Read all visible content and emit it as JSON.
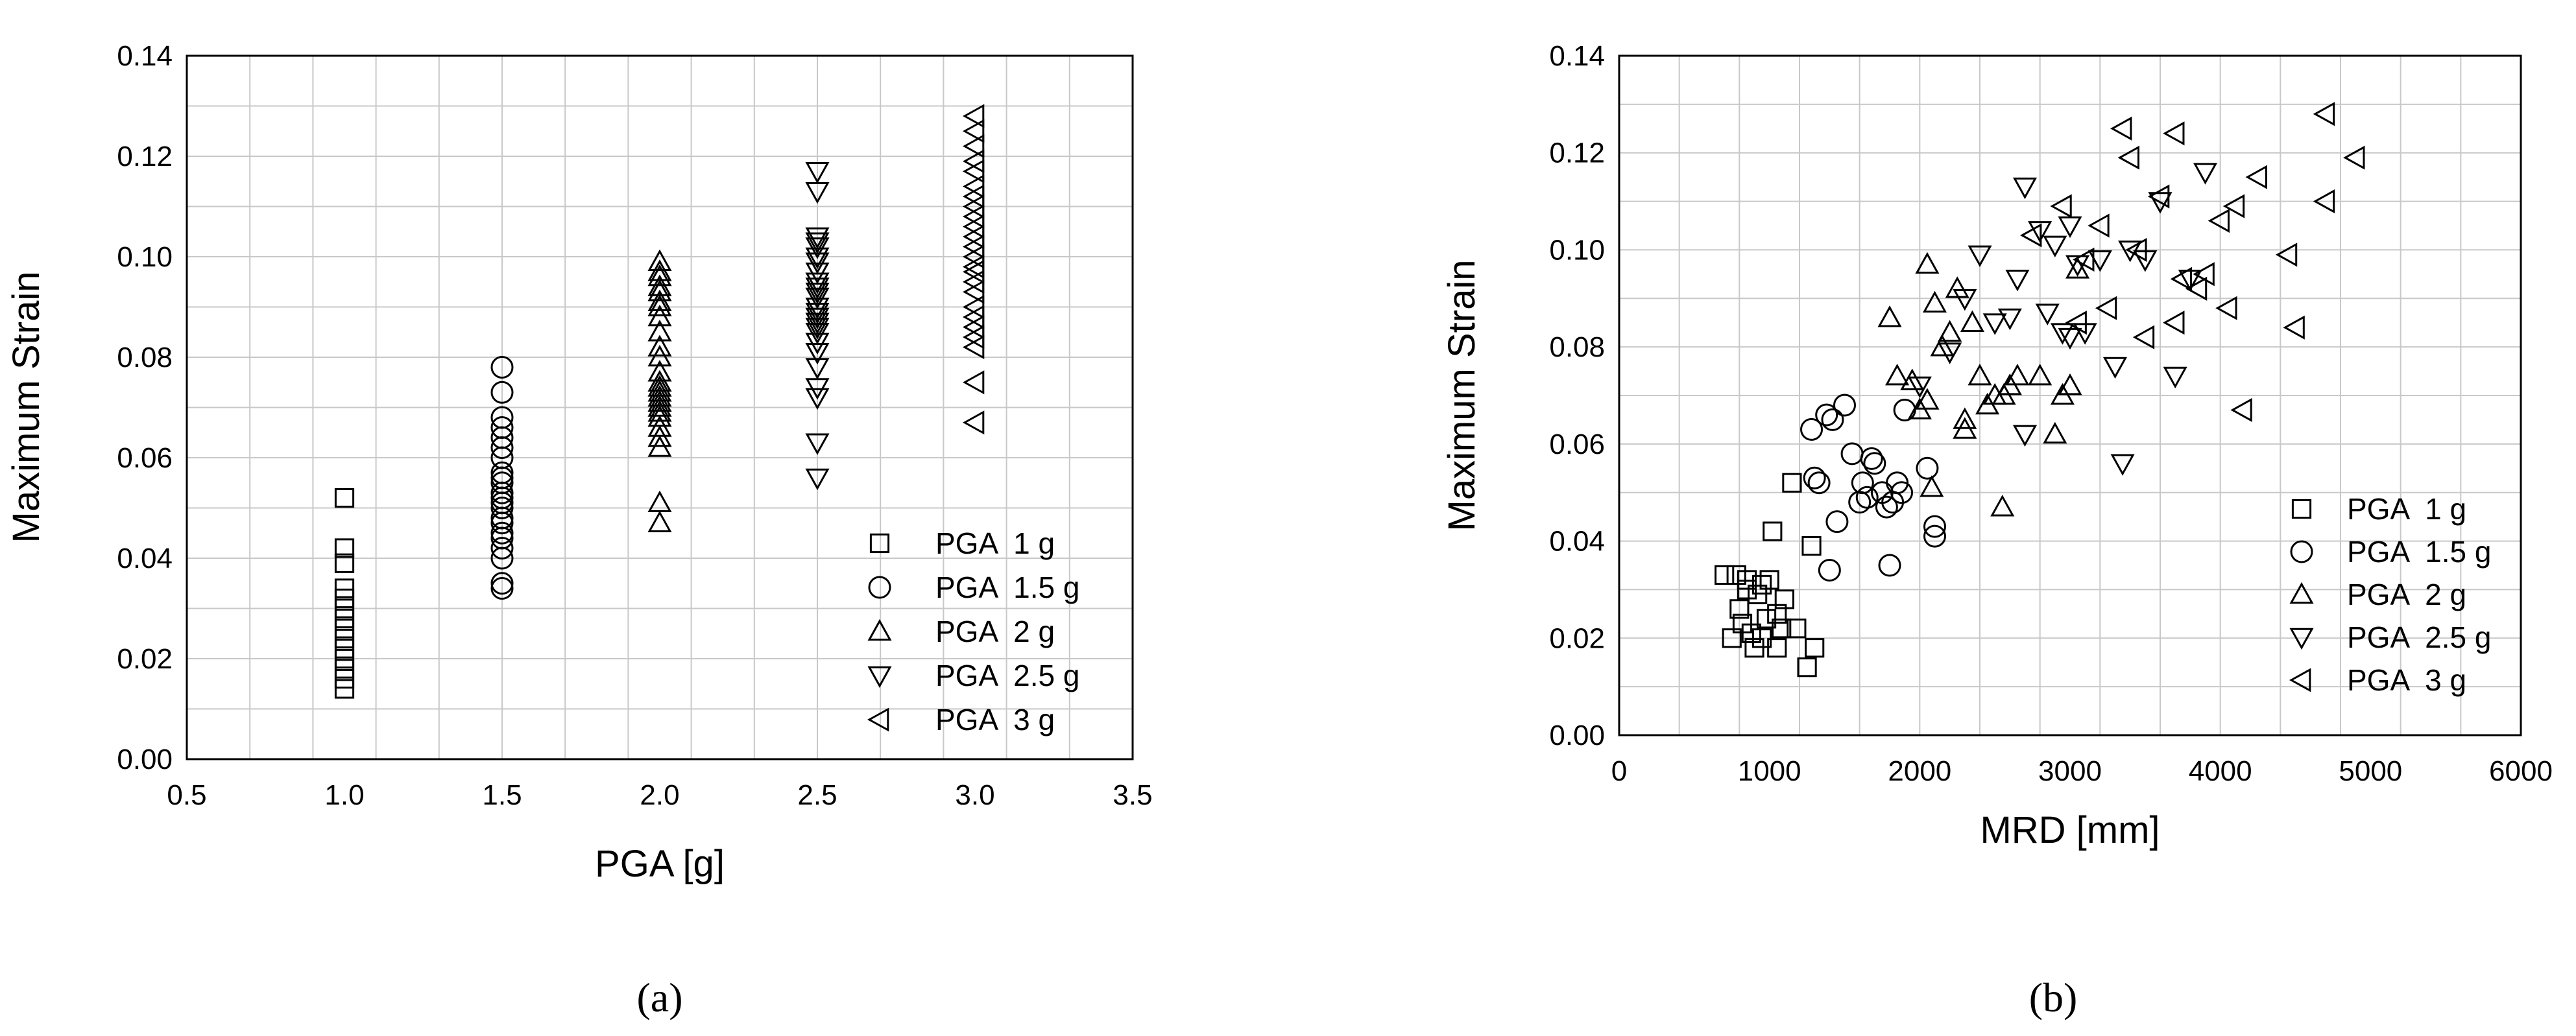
{
  "chart_data": [
    {
      "type": "scatter",
      "panel_label": "(a)",
      "xlabel": "PGA [g]",
      "ylabel": "Maximum Strain",
      "xlim": [
        0.5,
        3.5
      ],
      "ylim": [
        0,
        0.14
      ],
      "x_ticks": [
        "0.5",
        "1.0",
        "1.5",
        "2.0",
        "2.5",
        "3.0",
        "3.5"
      ],
      "y_ticks": [
        "0.00",
        "0.02",
        "0.04",
        "0.06",
        "0.08",
        "0.10",
        "0.12",
        "0.14"
      ],
      "grid": true,
      "legend_position": "bottom-right",
      "series": [
        {
          "name": "PGA  1 g",
          "marker": "square",
          "x": [
            1,
            1,
            1,
            1,
            1,
            1,
            1,
            1,
            1,
            1,
            1,
            1,
            1,
            1
          ],
          "y": [
            0.014,
            0.016,
            0.018,
            0.02,
            0.022,
            0.024,
            0.026,
            0.028,
            0.03,
            0.032,
            0.034,
            0.039,
            0.042,
            0.052
          ]
        },
        {
          "name": "PGA  1.5 g",
          "marker": "circle",
          "x": [
            1.5,
            1.5,
            1.5,
            1.5,
            1.5,
            1.5,
            1.5,
            1.5,
            1.5,
            1.5,
            1.5,
            1.5,
            1.5,
            1.5,
            1.5,
            1.5,
            1.5,
            1.5,
            1.5,
            1.5,
            1.5,
            1.5
          ],
          "y": [
            0.034,
            0.035,
            0.04,
            0.042,
            0.044,
            0.045,
            0.047,
            0.048,
            0.05,
            0.051,
            0.052,
            0.053,
            0.055,
            0.056,
            0.057,
            0.06,
            0.062,
            0.064,
            0.066,
            0.068,
            0.073,
            0.078
          ]
        },
        {
          "name": "PGA  2 g",
          "marker": "triangle-up",
          "x": [
            2,
            2,
            2,
            2,
            2,
            2,
            2,
            2,
            2,
            2,
            2,
            2,
            2,
            2,
            2,
            2,
            2,
            2,
            2,
            2,
            2,
            2,
            2,
            2,
            2
          ],
          "y": [
            0.047,
            0.051,
            0.062,
            0.064,
            0.066,
            0.068,
            0.069,
            0.07,
            0.071,
            0.072,
            0.073,
            0.074,
            0.075,
            0.077,
            0.08,
            0.082,
            0.085,
            0.088,
            0.09,
            0.091,
            0.093,
            0.094,
            0.096,
            0.097,
            0.099
          ]
        },
        {
          "name": "PGA  2.5 g",
          "marker": "triangle-down",
          "x": [
            2.5,
            2.5,
            2.5,
            2.5,
            2.5,
            2.5,
            2.5,
            2.5,
            2.5,
            2.5,
            2.5,
            2.5,
            2.5,
            2.5,
            2.5,
            2.5,
            2.5,
            2.5,
            2.5,
            2.5,
            2.5,
            2.5,
            2.5,
            2.5,
            2.5
          ],
          "y": [
            0.056,
            0.063,
            0.072,
            0.074,
            0.078,
            0.081,
            0.083,
            0.085,
            0.086,
            0.087,
            0.088,
            0.089,
            0.09,
            0.092,
            0.093,
            0.094,
            0.095,
            0.097,
            0.099,
            0.1,
            0.102,
            0.103,
            0.104,
            0.113,
            0.117
          ]
        },
        {
          "name": "PGA  3 g",
          "marker": "triangle-left",
          "x": [
            3,
            3,
            3,
            3,
            3,
            3,
            3,
            3,
            3,
            3,
            3,
            3,
            3,
            3,
            3,
            3,
            3,
            3,
            3,
            3,
            3,
            3,
            3,
            3
          ],
          "y": [
            0.067,
            0.075,
            0.082,
            0.084,
            0.086,
            0.088,
            0.09,
            0.093,
            0.095,
            0.097,
            0.098,
            0.1,
            0.102,
            0.104,
            0.106,
            0.108,
            0.11,
            0.112,
            0.114,
            0.117,
            0.119,
            0.122,
            0.125,
            0.128
          ]
        }
      ]
    },
    {
      "type": "scatter",
      "panel_label": "(b)",
      "xlabel": "MRD [mm]",
      "ylabel": "Maximum Strain",
      "xlim": [
        0,
        6000
      ],
      "ylim": [
        0,
        0.14
      ],
      "x_ticks": [
        "0",
        "1000",
        "2000",
        "3000",
        "4000",
        "5000",
        "6000"
      ],
      "y_ticks": [
        "0.00",
        "0.02",
        "0.04",
        "0.06",
        "0.08",
        "0.10",
        "0.12",
        "0.14"
      ],
      "grid": true,
      "legend_position": "bottom-right",
      "series": [
        {
          "name": "PGA  1 g",
          "marker": "square",
          "x": [
            700,
            750,
            780,
            800,
            820,
            850,
            880,
            900,
            920,
            950,
            980,
            1000,
            1020,
            1050,
            1080,
            1100,
            1150,
            1180,
            1250,
            1280,
            1300,
            1050,
            950,
            850
          ],
          "y": [
            0.033,
            0.02,
            0.033,
            0.026,
            0.023,
            0.032,
            0.021,
            0.018,
            0.029,
            0.031,
            0.024,
            0.032,
            0.042,
            0.018,
            0.022,
            0.028,
            0.052,
            0.022,
            0.014,
            0.039,
            0.018,
            0.025,
            0.02,
            0.03
          ]
        },
        {
          "name": "PGA  1.5 g",
          "marker": "circle",
          "x": [
            1280,
            1330,
            1380,
            1420,
            1450,
            1500,
            1550,
            1600,
            1620,
            1650,
            1680,
            1700,
            1750,
            1800,
            1820,
            1850,
            1880,
            1900,
            2050,
            2100,
            2100,
            1400,
            1300,
            1780
          ],
          "y": [
            0.063,
            0.052,
            0.066,
            0.065,
            0.044,
            0.068,
            0.058,
            0.048,
            0.052,
            0.049,
            0.057,
            0.056,
            0.05,
            0.035,
            0.048,
            0.052,
            0.05,
            0.067,
            0.055,
            0.043,
            0.041,
            0.034,
            0.053,
            0.047
          ]
        },
        {
          "name": "PGA  2 g",
          "marker": "triangle-up",
          "x": [
            1800,
            1850,
            1950,
            2000,
            2050,
            2080,
            2100,
            2150,
            2200,
            2250,
            2300,
            2350,
            2400,
            2450,
            2500,
            2550,
            2600,
            2650,
            2800,
            2900,
            2950,
            3000,
            2050,
            2300,
            2560,
            3050
          ],
          "y": [
            0.086,
            0.074,
            0.073,
            0.067,
            0.097,
            0.051,
            0.089,
            0.08,
            0.083,
            0.092,
            0.063,
            0.085,
            0.074,
            0.068,
            0.07,
            0.047,
            0.072,
            0.074,
            0.074,
            0.062,
            0.07,
            0.072,
            0.069,
            0.065,
            0.07,
            0.096
          ]
        },
        {
          "name": "PGA  2.5 g",
          "marker": "triangle-down",
          "x": [
            2000,
            2200,
            2300,
            2400,
            2500,
            2600,
            2650,
            2700,
            2800,
            2850,
            2900,
            2950,
            3000,
            3050,
            3100,
            3200,
            3300,
            3350,
            3400,
            3500,
            3600,
            3700,
            3800,
            3900,
            2700,
            3000
          ],
          "y": [
            0.072,
            0.079,
            0.09,
            0.099,
            0.085,
            0.086,
            0.094,
            0.113,
            0.104,
            0.087,
            0.101,
            0.083,
            0.105,
            0.097,
            0.083,
            0.098,
            0.076,
            0.056,
            0.1,
            0.098,
            0.11,
            0.074,
            0.094,
            0.116,
            0.062,
            0.082
          ]
        },
        {
          "name": "PGA  3 g",
          "marker": "triangle-left",
          "x": [
            2750,
            2950,
            3050,
            3100,
            3200,
            3250,
            3350,
            3400,
            3450,
            3500,
            3600,
            3700,
            3750,
            3850,
            3900,
            4000,
            4050,
            4100,
            4150,
            4250,
            4450,
            4500,
            4700,
            4700,
            4900,
            3700
          ],
          "y": [
            0.103,
            0.109,
            0.085,
            0.098,
            0.105,
            0.088,
            0.125,
            0.119,
            0.1,
            0.082,
            0.111,
            0.124,
            0.094,
            0.092,
            0.095,
            0.106,
            0.088,
            0.109,
            0.067,
            0.115,
            0.099,
            0.084,
            0.11,
            0.128,
            0.119,
            0.085
          ]
        }
      ]
    }
  ]
}
